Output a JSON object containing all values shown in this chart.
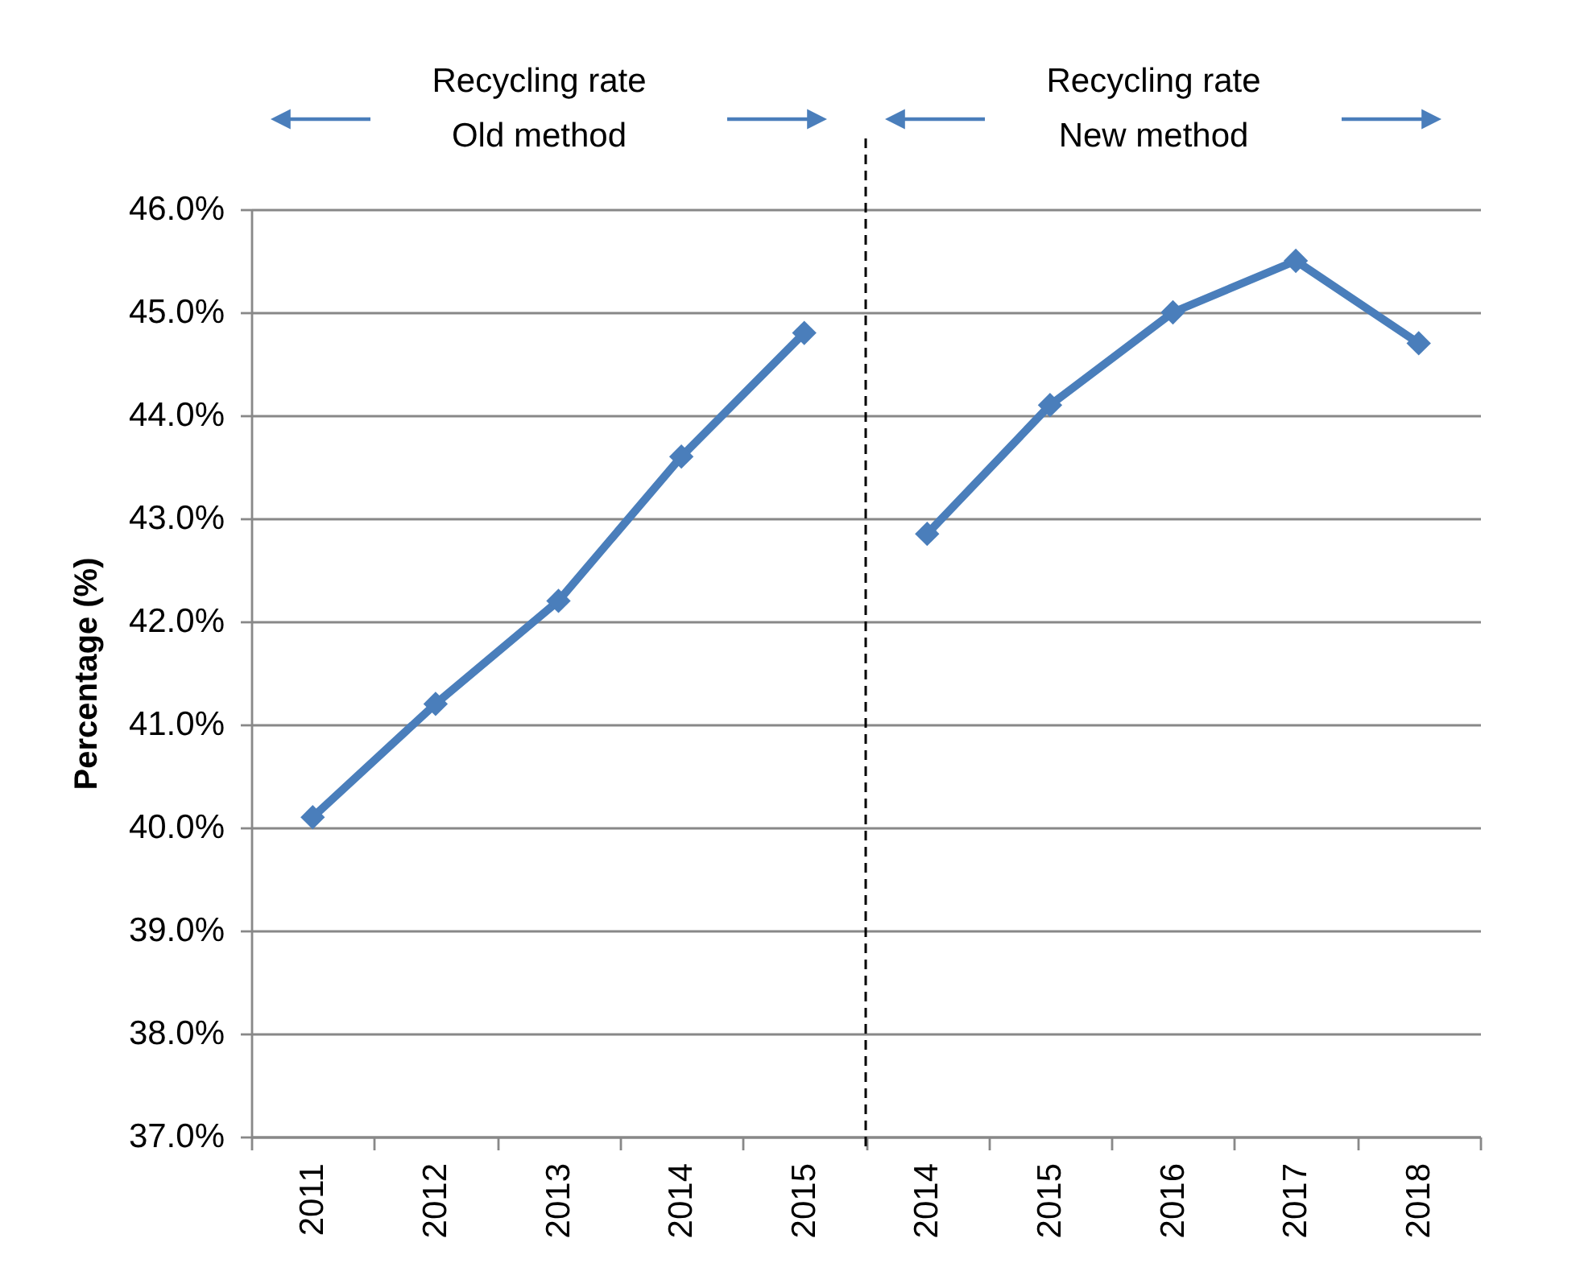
{
  "chart_data": {
    "type": "line",
    "ylabel": "Percentage (%)",
    "categories": [
      "2011",
      "2012",
      "2013",
      "2014",
      "2015",
      "2014",
      "2015",
      "2016",
      "2017",
      "2018"
    ],
    "series": [
      {
        "color": "#4a7ebb",
        "values": [
          40.1,
          41.2,
          42.2,
          43.6,
          44.8,
          null,
          null,
          null,
          null,
          null
        ]
      },
      {
        "color": "#4a7ebb",
        "values": [
          null,
          null,
          null,
          null,
          null,
          42.85,
          44.1,
          45.0,
          45.5,
          44.7
        ]
      }
    ],
    "ylim": [
      37,
      46
    ],
    "yticks": [
      {
        "value": 37,
        "label": "37.0%"
      },
      {
        "value": 38,
        "label": "38.0%"
      },
      {
        "value": 39,
        "label": "39.0%"
      },
      {
        "value": 40,
        "label": "40.0%"
      },
      {
        "value": 41,
        "label": "41.0%"
      },
      {
        "value": 42,
        "label": "42.0%"
      },
      {
        "value": 43,
        "label": "43.0%"
      },
      {
        "value": 44,
        "label": "44.0%"
      },
      {
        "value": 45,
        "label": "45.0%"
      },
      {
        "value": 46,
        "label": "46.0%"
      }
    ],
    "grid": "y",
    "marker": "diamond",
    "line_style": "solid",
    "ref_lines": [
      {
        "axis": "x",
        "value": "2015",
        "line_style": "dashed",
        "color": "#000000"
      }
    ],
    "annotations": [
      "Recycling rate\nOld method",
      "Recycling rate\nNew method"
    ]
  }
}
